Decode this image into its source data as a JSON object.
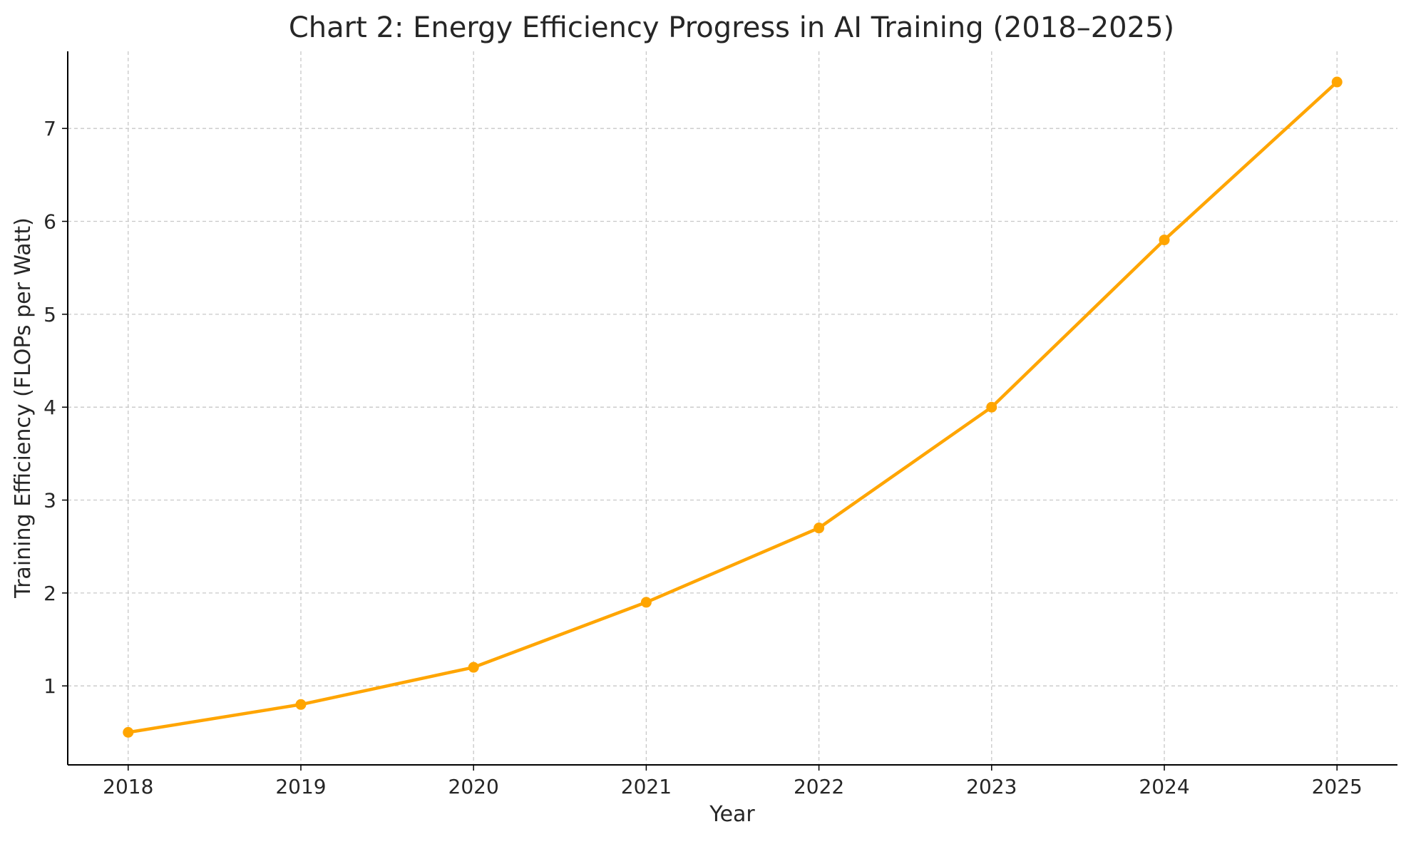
{
  "chart_data": {
    "type": "line",
    "title": "Chart 2: Energy Efficiency Progress in AI Training (2018–2025)",
    "xlabel": "Year",
    "ylabel": "Training Efficiency (FLOPs per Watt)",
    "x": [
      2018,
      2019,
      2020,
      2021,
      2022,
      2023,
      2024,
      2025
    ],
    "x_tick_labels": [
      "2018",
      "2019",
      "2020",
      "2021",
      "2022",
      "2023",
      "2024",
      "2025"
    ],
    "y_ticks": [
      1,
      2,
      3,
      4,
      5,
      6,
      7
    ],
    "y_tick_labels": [
      "1",
      "2",
      "3",
      "4",
      "5",
      "6",
      "7"
    ],
    "series": [
      {
        "values": [
          0.5,
          0.8,
          1.2,
          1.9,
          2.7,
          4.0,
          5.8,
          7.5
        ],
        "color": "#FFA500",
        "marker": "circle"
      }
    ],
    "xlim": [
      2017.65,
      2025.35
    ],
    "ylim": [
      0.15,
      7.83
    ],
    "grid": true,
    "grid_style": "dashed",
    "legend": "none"
  }
}
